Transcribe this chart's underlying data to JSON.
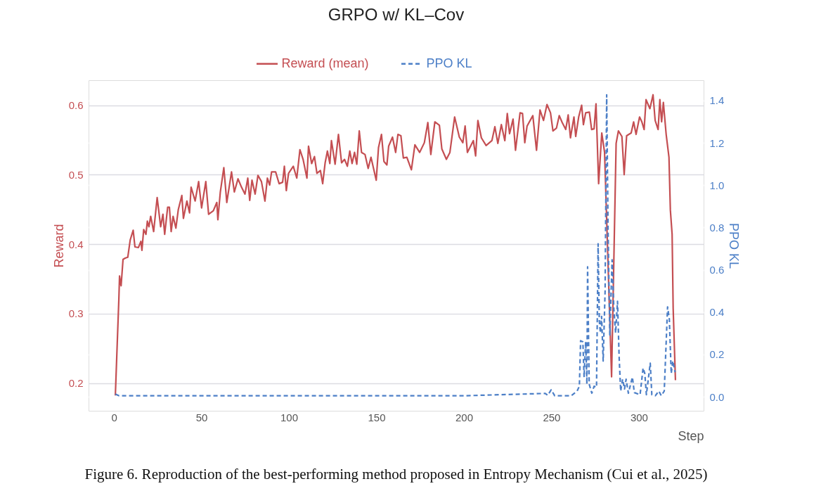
{
  "chart_data": {
    "type": "line",
    "title": "GRPO w/ KL–Cov",
    "xlabel": "Step",
    "ylabel": "Reward",
    "y2label": "PPO KL",
    "xlim": [
      -14.5,
      337
    ],
    "xticks": [
      0,
      50,
      100,
      150,
      200,
      250,
      300
    ],
    "ylim": [
      0.16,
      0.636
    ],
    "yticks": [
      0.2,
      0.3,
      0.4,
      0.5,
      0.6
    ],
    "y2lim": [
      -0.066,
      1.496
    ],
    "y2ticks": [
      {
        "value": 0,
        "label": "0.0"
      },
      0.2,
      0.4,
      0.6,
      0.8,
      {
        "value": 1,
        "label": "1.0"
      },
      1.2,
      1.4
    ],
    "grid": "y",
    "legend": "top",
    "marker": "none",
    "annotations": [
      "Figure 6. Reproduction of the best-performing method proposed in Entropy Mechanism (Cui et al., 2025)"
    ],
    "series": [
      {
        "name": "Reward (mean)",
        "color": "#c44e52",
        "line_style": "solid",
        "axis": "y",
        "x": [
          0.8,
          2.8,
          3.2,
          4.1,
          5.2,
          6.6,
          7.9,
          9.3,
          11,
          12,
          14,
          15.4,
          16,
          17,
          18.3,
          19.1,
          20,
          21,
          22.7,
          24.7,
          26.7,
          28,
          29,
          30.7,
          31.7,
          32.7,
          33.8,
          35.4,
          36.8,
          38.8,
          39.7,
          41.7,
          43.2,
          44.1,
          46.4,
          48.4,
          50.1,
          52.5,
          54.1,
          56.8,
          58.8,
          59.4,
          60.8,
          62.8,
          64.5,
          67.2,
          68.8,
          70.9,
          72.9,
          74.9,
          76.5,
          77.6,
          78.9,
          80.7,
          82.3,
          84.3,
          86.3,
          87.7,
          89,
          90.1,
          92.4,
          94.4,
          96.4,
          97.4,
          98.5,
          99.8,
          102.5,
          104.5,
          106.3,
          108.1,
          110.3,
          111.2,
          113,
          114.6,
          116,
          118,
          119.3,
          120.7,
          122,
          123.4,
          124.3,
          126.4,
          128.3,
          130.1,
          131.8,
          133.4,
          134.8,
          136.1,
          137.5,
          138.8,
          140.2,
          141.5,
          143.5,
          145.3,
          146.9,
          149.9,
          151.2,
          152.9,
          154.3,
          156,
          157,
          159.2,
          161,
          162.3,
          164,
          165.4,
          167.4,
          170,
          172,
          174.7,
          177.4,
          179.4,
          181.1,
          183.4,
          186,
          187.4,
          190,
          192,
          194.7,
          197.4,
          199.4,
          200.7,
          202,
          205.4,
          206.7,
          208,
          210,
          212.7,
          216,
          217.7,
          219.4,
          221.4,
          223.4,
          224.8,
          226.1,
          228.1,
          229.5,
          232.1,
          233.5,
          234.8,
          236.1,
          239.4,
          241.5,
          243.5,
          245.5,
          247.5,
          249.5,
          250.9,
          252.9,
          254.5,
          256.2,
          258.2,
          259.6,
          260.9,
          262.9,
          263.9,
          265.6,
          267.3,
          268.3,
          269.6,
          271.7,
          273,
          274.4,
          275.5,
          277,
          278.8,
          280.4,
          284.4,
          287,
          288.3,
          290.3,
          291.6,
          293,
          295.6,
          297,
          298.4,
          300.4,
          301.7,
          303,
          304.1,
          306.3,
          308.1,
          309.3,
          311,
          312,
          313,
          314,
          315.6,
          317.2,
          318,
          319,
          319.6,
          320.9
        ],
        "values": [
          0.182,
          0.32,
          0.354,
          0.34,
          0.378,
          0.38,
          0.381,
          0.406,
          0.42,
          0.396,
          0.395,
          0.404,
          0.391,
          0.421,
          0.414,
          0.433,
          0.425,
          0.44,
          0.418,
          0.467,
          0.425,
          0.443,
          0.414,
          0.453,
          0.453,
          0.418,
          0.44,
          0.423,
          0.45,
          0.47,
          0.437,
          0.462,
          0.445,
          0.482,
          0.462,
          0.49,
          0.452,
          0.49,
          0.443,
          0.448,
          0.46,
          0.435,
          0.475,
          0.51,
          0.46,
          0.504,
          0.475,
          0.494,
          0.482,
          0.472,
          0.495,
          0.463,
          0.492,
          0.472,
          0.499,
          0.49,
          0.462,
          0.495,
          0.485,
          0.504,
          0.504,
          0.487,
          0.489,
          0.512,
          0.477,
          0.502,
          0.512,
          0.495,
          0.536,
          0.522,
          0.495,
          0.541,
          0.516,
          0.526,
          0.502,
          0.506,
          0.487,
          0.517,
          0.534,
          0.516,
          0.549,
          0.515,
          0.558,
          0.517,
          0.522,
          0.512,
          0.534,
          0.516,
          0.532,
          0.515,
          0.563,
          0.532,
          0.529,
          0.509,
          0.525,
          0.492,
          0.539,
          0.558,
          0.519,
          0.514,
          0.541,
          0.554,
          0.532,
          0.558,
          0.556,
          0.524,
          0.525,
          0.507,
          0.543,
          0.532,
          0.546,
          0.575,
          0.529,
          0.576,
          0.571,
          0.537,
          0.522,
          0.532,
          0.583,
          0.554,
          0.546,
          0.57,
          0.532,
          0.549,
          0.527,
          0.578,
          0.553,
          0.542,
          0.549,
          0.569,
          0.545,
          0.572,
          0.549,
          0.588,
          0.559,
          0.58,
          0.535,
          0.589,
          0.588,
          0.546,
          0.57,
          0.585,
          0.535,
          0.593,
          0.578,
          0.601,
          0.589,
          0.563,
          0.567,
          0.585,
          0.575,
          0.565,
          0.586,
          0.553,
          0.583,
          0.555,
          0.583,
          0.6,
          0.572,
          0.589,
          0.59,
          0.565,
          0.566,
          0.602,
          0.487,
          0.56,
          0.532,
          0.209,
          0.545,
          0.563,
          0.555,
          0.5,
          0.556,
          0.56,
          0.576,
          0.558,
          0.583,
          0.576,
          0.565,
          0.608,
          0.595,
          0.615,
          0.578,
          0.565,
          0.608,
          0.576,
          0.604,
          0.558,
          0.525,
          0.449,
          0.414,
          0.307,
          0.204
        ]
      },
      {
        "name": "PPO KL",
        "color": "#4c7fc7",
        "line_style": "dashed",
        "axis": "y2",
        "x": [
          0.8,
          3,
          50,
          100,
          150,
          200,
          246.5,
          247.9,
          249.9,
          251.9,
          261.3,
          264.7,
          266,
          266.7,
          268,
          268.7,
          269.6,
          270.3,
          270.7,
          271.6,
          273.1,
          274.4,
          275.8,
          276.7,
          277.4,
          278,
          278.7,
          279.6,
          280.7,
          281.6,
          282.4,
          283.4,
          284.7,
          285.7,
          286.7,
          287.8,
          288.7,
          289.6,
          290.7,
          291.8,
          292.7,
          294,
          296.3,
          297.4,
          300.7,
          302.4,
          303.4,
          304.3,
          306.5,
          307.4,
          309.4,
          311.4,
          312.8,
          314.5,
          316.4,
          317.4,
          318.5,
          319.4,
          320.7
        ],
        "values": [
          0.013,
          0.005,
          0.005,
          0.005,
          0.005,
          0.005,
          0.016,
          0.007,
          0.033,
          0.005,
          0.005,
          0.027,
          0.05,
          0.265,
          0.26,
          0.093,
          0.26,
          0.06,
          0.614,
          0.06,
          0.017,
          0.05,
          0.045,
          0.723,
          0.358,
          0.302,
          0.38,
          0.169,
          0.5,
          1.427,
          0.79,
          0.292,
          0.647,
          0.415,
          0.302,
          0.451,
          0.192,
          0.027,
          0.083,
          0.037,
          0.083,
          0.017,
          0.093,
          0.02,
          0.01,
          0.136,
          0.11,
          0.01,
          0.159,
          0.01,
          0.005,
          0.027,
          0.005,
          0.027,
          0.425,
          0.368,
          0.11,
          0.169,
          0.116
        ]
      }
    ]
  }
}
